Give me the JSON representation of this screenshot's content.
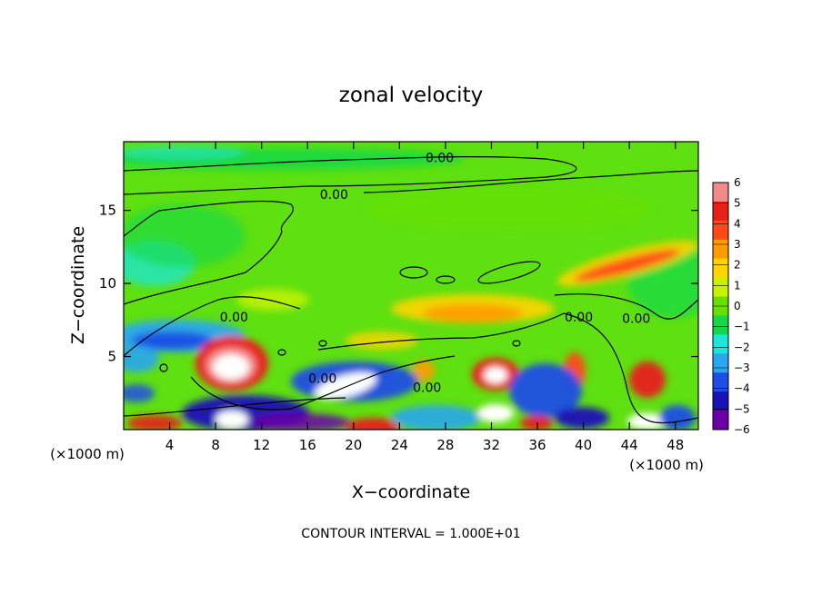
{
  "chart_data": {
    "type": "heatmap",
    "title": "zonal velocity",
    "xlabel": "X−coordinate",
    "ylabel": "Z−coordinate",
    "x_unit_left": "(×1000 m)",
    "x_unit_right": "(×1000 m)",
    "xlim": [
      0,
      50
    ],
    "ylim": [
      0,
      19.7
    ],
    "x_ticks": [
      4,
      8,
      12,
      16,
      20,
      24,
      28,
      32,
      36,
      40,
      44,
      48
    ],
    "y_ticks": [
      5,
      10,
      15
    ],
    "colorbar": {
      "values": [
        6,
        5,
        4,
        3,
        2,
        1,
        0,
        -1,
        -2,
        -3,
        -4,
        -5,
        -6
      ],
      "labels": [
        "6",
        "5",
        "4",
        "3",
        "2",
        "1",
        "0",
        "−1",
        "−2",
        "−3",
        "−4",
        "−5",
        "−6"
      ],
      "colors": [
        "#f28a8a",
        "#e8201a",
        "#ff4a14",
        "#ff9a00",
        "#ffd400",
        "#c8f200",
        "#66e000",
        "#12d84a",
        "#1ce6d8",
        "#2aa6f0",
        "#1e4ee6",
        "#1a10b8",
        "#6a00a8"
      ]
    },
    "contour_labels": [
      {
        "text": "0.00",
        "x": 27.5,
        "y": 18.6
      },
      {
        "text": "0.00",
        "x": 18.3,
        "y": 16.1
      },
      {
        "text": "0.00",
        "x": 9.6,
        "y": 7.7
      },
      {
        "text": "0.00",
        "x": 17.3,
        "y": 3.5
      },
      {
        "text": "0.00",
        "x": 26.4,
        "y": 2.9
      },
      {
        "text": "0.00",
        "x": 39.6,
        "y": 7.7
      },
      {
        "text": "0.00",
        "x": 44.6,
        "y": 7.6
      }
    ],
    "grid": false,
    "background_value": 0.5
  },
  "footer": "CONTOUR INTERVAL = 1.000E+01"
}
